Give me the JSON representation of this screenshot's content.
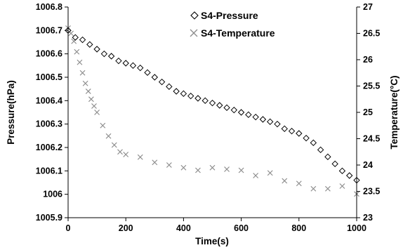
{
  "chart_data": {
    "type": "scatter",
    "xlabel": "Time(s)",
    "ylabel_left": "Pressure(hPa)",
    "ylabel_right": "Temperature(°C)",
    "xlim": [
      0,
      1000
    ],
    "ylim_left": [
      1005.9,
      1006.8
    ],
    "ylim_right": [
      23,
      27
    ],
    "x_ticks": [
      "0",
      "200",
      "400",
      "600",
      "800",
      "1000"
    ],
    "y_left_ticks": [
      "1005.9",
      "1006",
      "1006.1",
      "1006.2",
      "1006.3",
      "1006.4",
      "1006.5",
      "1006.6",
      "1006.7",
      "1006.8"
    ],
    "y_right_ticks": [
      "23",
      "23.5",
      "24",
      "24.5",
      "25",
      "25.5",
      "26",
      "26.5",
      "27"
    ],
    "grid": false,
    "legend_position": "top-right",
    "series": [
      {
        "name": "S4-Pressure",
        "axis": "left",
        "marker": "diamond",
        "color": "#000000",
        "x": [
          0,
          25,
          50,
          75,
          100,
          125,
          150,
          175,
          200,
          225,
          250,
          275,
          300,
          325,
          350,
          375,
          400,
          425,
          450,
          475,
          500,
          525,
          550,
          575,
          600,
          625,
          650,
          675,
          700,
          725,
          750,
          775,
          800,
          825,
          850,
          875,
          900,
          925,
          950,
          975,
          1000
        ],
        "values": [
          1006.7,
          1006.67,
          1006.66,
          1006.64,
          1006.62,
          1006.6,
          1006.59,
          1006.57,
          1006.56,
          1006.55,
          1006.54,
          1006.52,
          1006.5,
          1006.48,
          1006.46,
          1006.44,
          1006.43,
          1006.42,
          1006.41,
          1006.4,
          1006.39,
          1006.38,
          1006.37,
          1006.36,
          1006.35,
          1006.34,
          1006.33,
          1006.32,
          1006.31,
          1006.3,
          1006.28,
          1006.27,
          1006.26,
          1006.24,
          1006.22,
          1006.19,
          1006.16,
          1006.13,
          1006.1,
          1006.08,
          1006.06
        ]
      },
      {
        "name": "S4-Temperature",
        "axis": "right",
        "marker": "x",
        "color": "#8c8c8c",
        "x": [
          0,
          10,
          20,
          30,
          40,
          50,
          60,
          70,
          80,
          90,
          100,
          120,
          140,
          160,
          180,
          200,
          250,
          300,
          350,
          400,
          450,
          500,
          550,
          600,
          650,
          700,
          750,
          800,
          850,
          900,
          950,
          1000
        ],
        "values": [
          26.6,
          26.5,
          26.35,
          26.15,
          25.95,
          25.75,
          25.55,
          25.4,
          25.25,
          25.12,
          25.0,
          24.75,
          24.55,
          24.38,
          24.25,
          24.2,
          24.15,
          24.05,
          24.0,
          23.95,
          23.9,
          23.95,
          23.92,
          23.9,
          23.8,
          23.85,
          23.7,
          23.65,
          23.55,
          23.55,
          23.6,
          23.45
        ]
      }
    ]
  }
}
